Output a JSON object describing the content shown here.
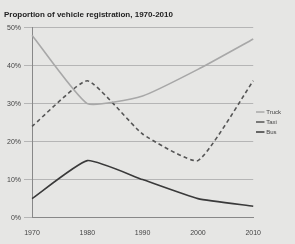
{
  "chart_data": {
    "type": "line",
    "title": "Proportion of vehicle registration, 1970-2010",
    "categories": [
      "1970",
      "1980",
      "1990",
      "2000",
      "2010"
    ],
    "series": [
      {
        "name": "Truck",
        "color": "#a8a8a8",
        "line_style": "solid",
        "marker": "none",
        "values": [
          48,
          30,
          32,
          39,
          47
        ]
      },
      {
        "name": "Taxi",
        "color": "#555555",
        "line_style": "dashed",
        "marker": "none",
        "values": [
          24,
          36,
          22,
          15,
          36
        ]
      },
      {
        "name": "Bus",
        "color": "#3a3a3a",
        "line_style": "solid",
        "marker": "none",
        "values": [
          5,
          15,
          10,
          5,
          3
        ]
      }
    ],
    "ylim": [
      0,
      50
    ],
    "yticks": [
      {
        "value": 0,
        "label": "0%"
      },
      {
        "value": 10,
        "label": "10%"
      },
      {
        "value": 20,
        "label": "20%"
      },
      {
        "value": 30,
        "label": "30%"
      },
      {
        "value": 40,
        "label": "40%"
      },
      {
        "value": 50,
        "label": "50%"
      }
    ],
    "grid": true,
    "legend": "right"
  }
}
